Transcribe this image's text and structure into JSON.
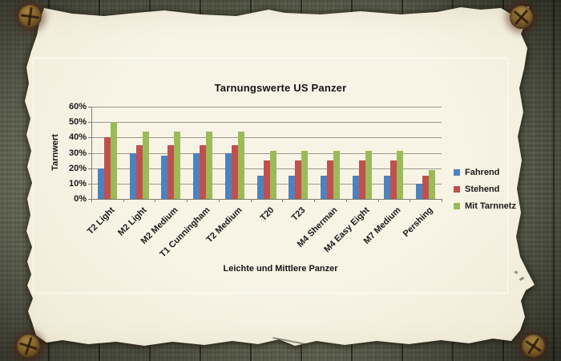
{
  "chart_data": {
    "type": "bar",
    "title": "Tarnungswerte US Panzer",
    "xlabel": "Leichte und Mittlere Panzer",
    "ylabel": "Tarnwert",
    "categories": [
      "T2 Light",
      "M2 Light",
      "M2 Medium",
      "T1 Cunningham",
      "T2 Medium",
      "T20",
      "T23",
      "M4 Sherman",
      "M4 Easy Eight",
      "M7 Medium",
      "Pershing"
    ],
    "series": [
      {
        "name": "Fahrend",
        "color": "#4F81BD",
        "values": [
          20,
          30,
          28,
          30,
          30,
          15,
          15,
          15,
          15,
          15,
          10
        ]
      },
      {
        "name": "Stehend",
        "color": "#C0504D",
        "values": [
          40,
          35,
          35,
          35,
          35,
          25,
          25,
          25,
          25,
          25,
          15
        ]
      },
      {
        "name": "Mit Tarnnetz",
        "color": "#9BBB59",
        "values": [
          50,
          43.75,
          43.75,
          43.75,
          43.75,
          31.25,
          31.25,
          31.25,
          31.25,
          31.25,
          18.75
        ]
      }
    ],
    "ylim": [
      0,
      60
    ],
    "ytick_step": 10,
    "ytick_labels": [
      "0%",
      "10%",
      "20%",
      "30%",
      "40%",
      "50%",
      "60%"
    ],
    "grid": true,
    "legend_position": "right"
  },
  "theme": {
    "bar_blue": "#4F81BD",
    "bar_red": "#C0504D",
    "bar_green": "#9BBB59",
    "paper": "#F4F1E0",
    "gridline": "#9B9A8E",
    "text": "#1A1A1A"
  }
}
